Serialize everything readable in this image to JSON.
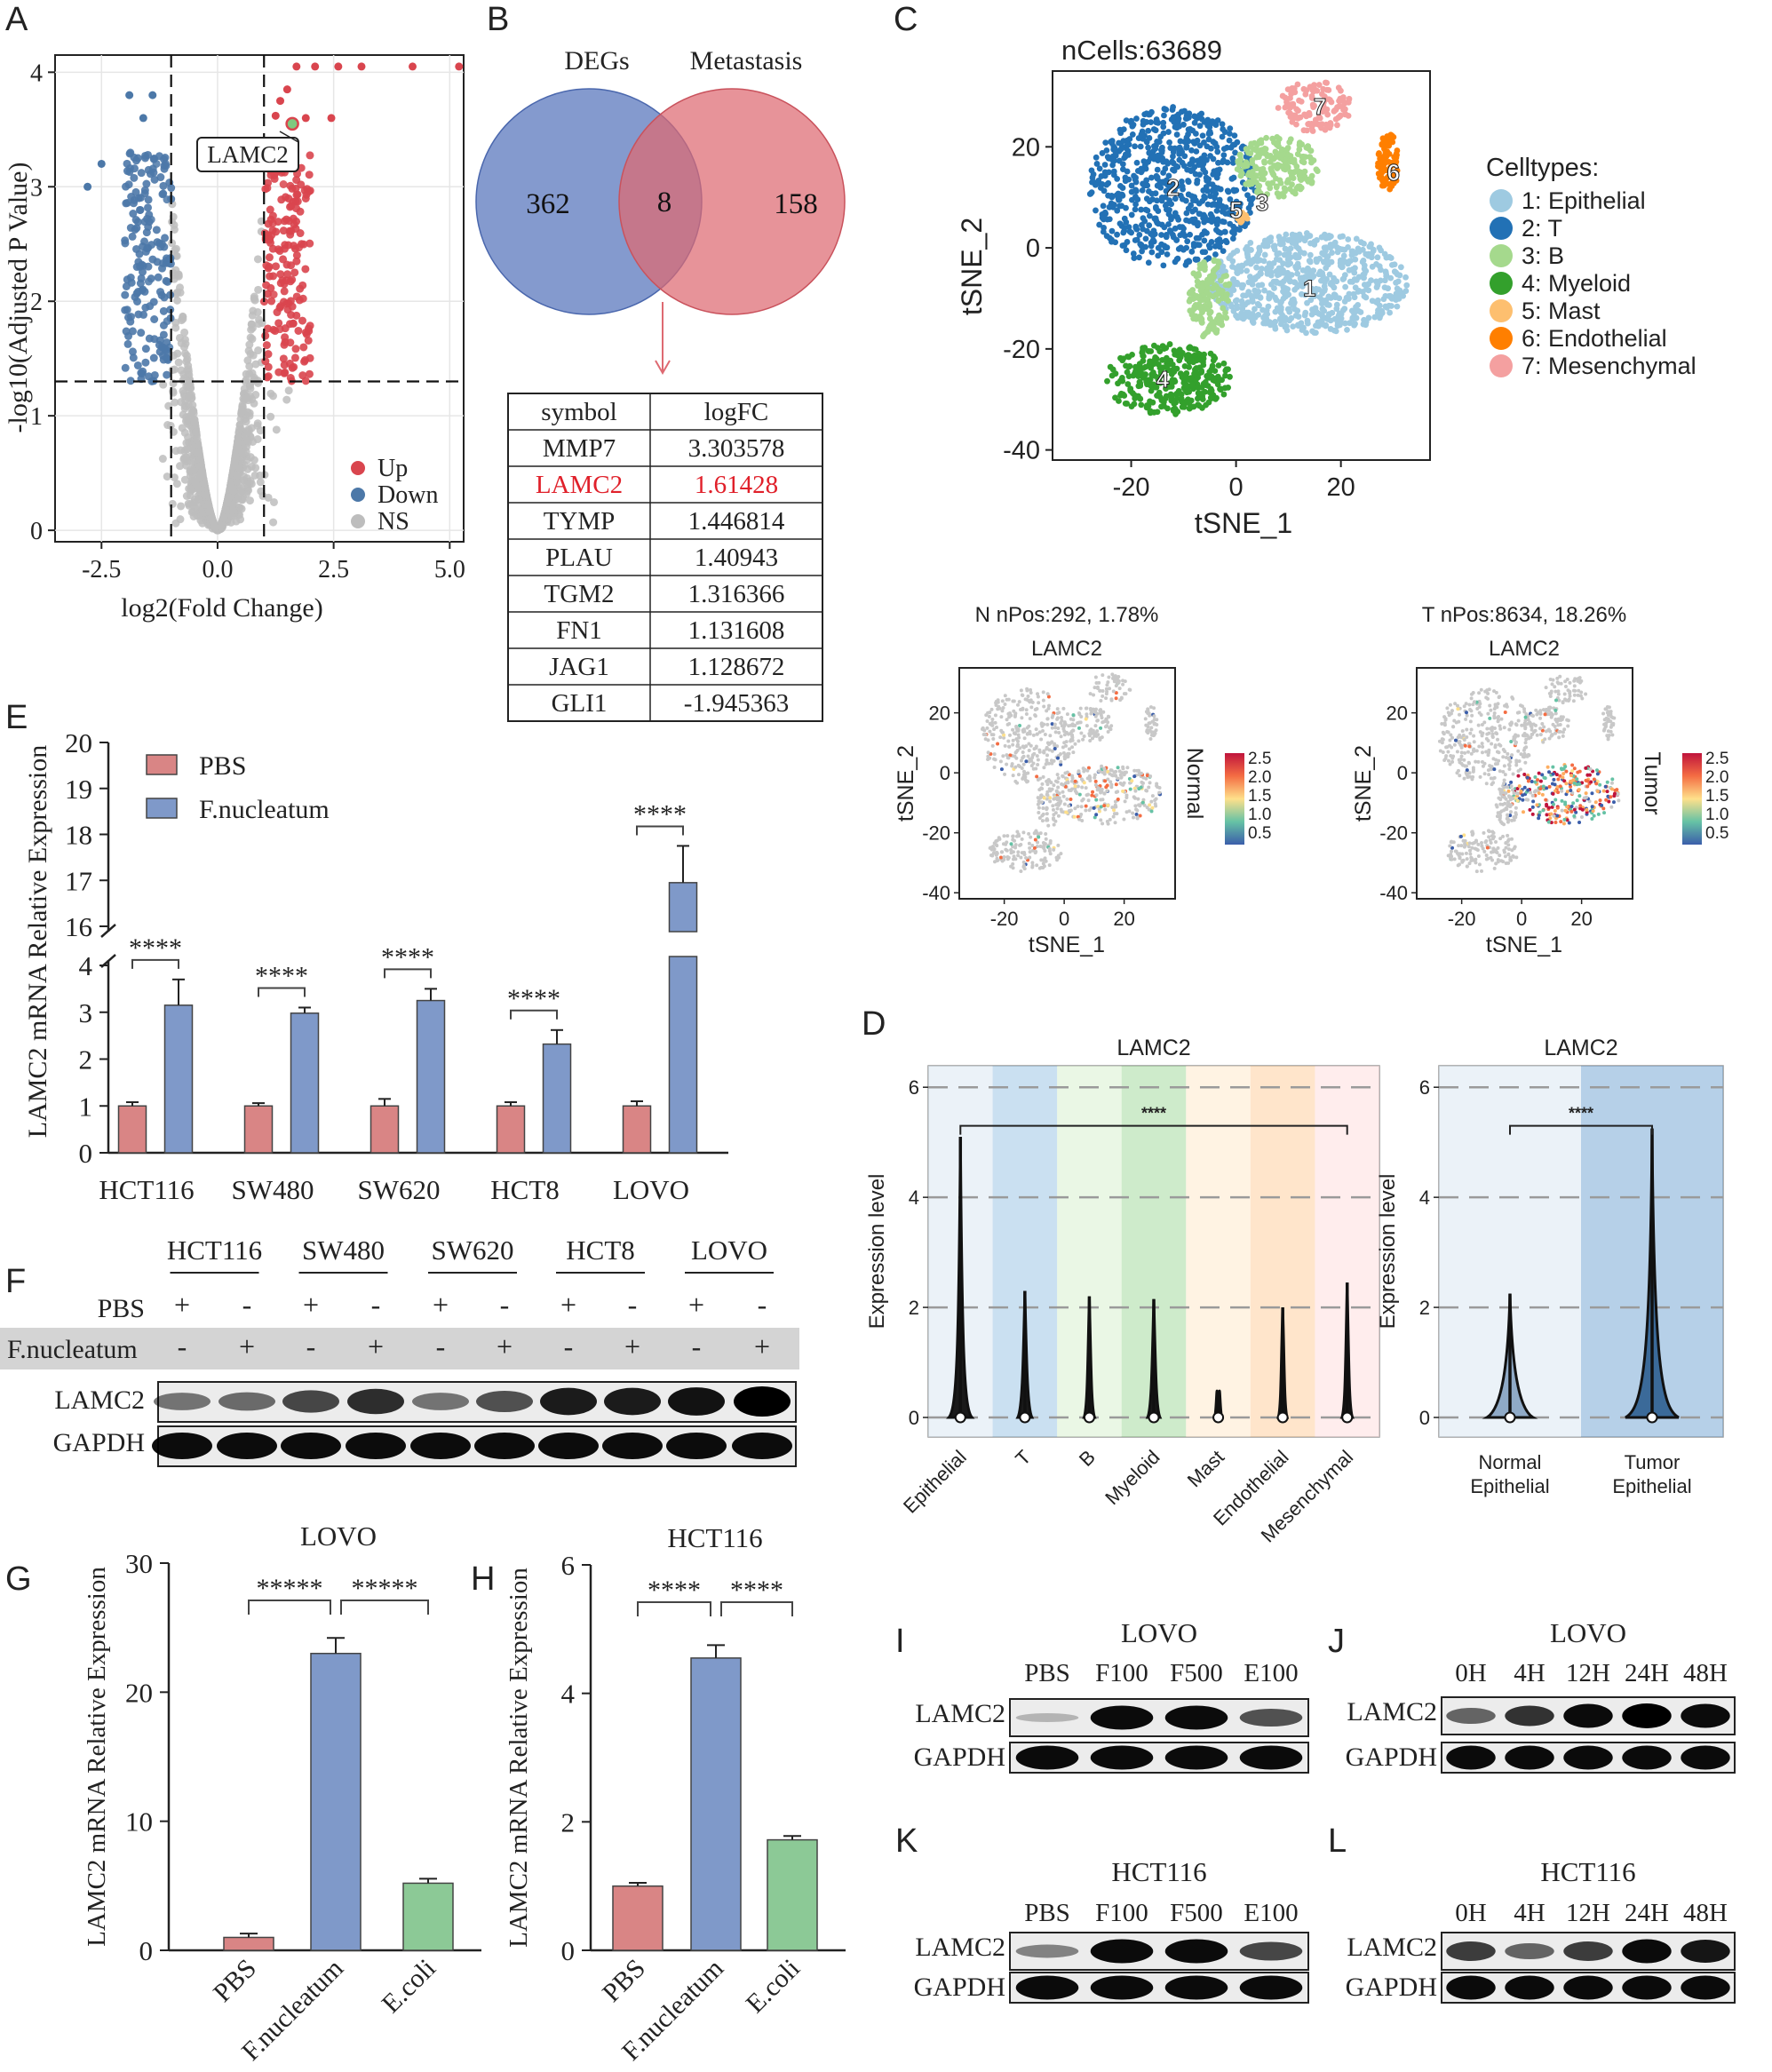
{
  "colors": {
    "up": "#d9454e",
    "down": "#4c78a8",
    "ns": "#bdbdbd",
    "pbs": "#d98585",
    "fnuc": "#7f99c9",
    "ecoli": "#8cc996",
    "venn_left": "#5b78be",
    "venn_right": "#de6a72",
    "ct1": "#9ecae1",
    "ct2": "#2271b5",
    "ct3": "#a5d98d",
    "ct4": "#33a02c",
    "ct5": "#fdbf6f",
    "ct6": "#ff7f00",
    "ct7": "#f4a0a0"
  },
  "panel_letters": [
    "A",
    "B",
    "C",
    "D",
    "E",
    "F",
    "G",
    "H",
    "I",
    "J",
    "K",
    "L"
  ],
  "panelA": {
    "chart_data": {
      "type": "scatter",
      "title": "",
      "xlabel": "log2(Fold Change)",
      "ylabel": "-log10(Adjusted P Value)",
      "xlim": [
        -3.5,
        5.3
      ],
      "ylim": [
        -0.1,
        4.15
      ],
      "xticks": [
        "-2.5",
        "0.0",
        "2.5",
        "5.0"
      ],
      "yticks": [
        "0",
        "1",
        "2",
        "3",
        "4"
      ],
      "thresholds": {
        "logfc": [
          -1,
          1
        ],
        "p": 1.3
      },
      "highlight": {
        "label": "LAMC2",
        "x": 1.61,
        "y": 3.55
      },
      "legend": [
        {
          "name": "Up",
          "color": "#d9454e"
        },
        {
          "name": "Down",
          "color": "#4c78a8"
        },
        {
          "name": "NS",
          "color": "#bdbdbd"
        }
      ]
    }
  },
  "panelB": {
    "venn": {
      "left_label": "DEGs",
      "right_label": "Metastasis",
      "left_only": "362",
      "overlap": "8",
      "right_only": "158"
    },
    "table": {
      "header": [
        "symbol",
        "logFC"
      ],
      "rows": [
        {
          "symbol": "MMP7",
          "logfc": "3.303578"
        },
        {
          "symbol": "LAMC2",
          "logfc": "1.61428"
        },
        {
          "symbol": "TYMP",
          "logfc": "1.446814"
        },
        {
          "symbol": "PLAU",
          "logfc": "1.40943"
        },
        {
          "symbol": "TGM2",
          "logfc": "1.316366"
        },
        {
          "symbol": "FN1",
          "logfc": "1.131608"
        },
        {
          "symbol": "JAG1",
          "logfc": "1.128672"
        },
        {
          "symbol": "GLI1",
          "logfc": "-1.945363"
        }
      ]
    }
  },
  "panelC": {
    "main": {
      "title": "nCells:63689",
      "xlabel": "tSNE_1",
      "ylabel": "tSNE_2",
      "xticks": [
        "-20",
        "0",
        "20"
      ],
      "yticks": [
        "20",
        "0",
        "-20",
        "-40"
      ],
      "legend_title": "Celltypes:",
      "celltypes": [
        "1: Epithelial",
        "2: T",
        "3: B",
        "4: Myeloid",
        "5: Mast",
        "6: Endothelial",
        "7: Mesenchymal"
      ],
      "cluster_labels": [
        "1",
        "2",
        "3",
        "4",
        "5",
        "6",
        "7"
      ]
    },
    "normal": {
      "header": "N nPos:292, 1.78%",
      "gene": "LAMC2",
      "side": "Normal"
    },
    "tumor": {
      "header": "T nPos:8634, 18.26%",
      "gene": "LAMC2",
      "side": "Tumor"
    },
    "small_axes": {
      "xlabel": "tSNE_1",
      "ylabel": "tSNE_2",
      "xticks": [
        "-20",
        "0",
        "20"
      ],
      "yticks": [
        "20",
        "0",
        "-20",
        "-40"
      ]
    },
    "colorbar_ticks": [
      "2.5",
      "2.0",
      "1.5",
      "1.0",
      "0.5"
    ]
  },
  "panelD": {
    "left": {
      "title": "LAMC2",
      "ylabel": "Expression level",
      "categories": [
        "Epithelial",
        "T",
        "B",
        "Myeloid",
        "Mast",
        "Endothelial",
        "Mesenchymal"
      ],
      "yticks": [
        "0",
        "2",
        "4",
        "6"
      ],
      "sig": "****"
    },
    "right": {
      "title": "LAMC2",
      "ylabel": "Expression level",
      "categories": [
        "Normal\nEpithelial",
        "Tumor\nEpithelial"
      ],
      "cat_lines": [
        [
          "Normal",
          "Epithelial"
        ],
        [
          "Tumor",
          "Epithelial"
        ]
      ],
      "yticks": [
        "0",
        "2",
        "4",
        "6"
      ],
      "sig": "****"
    }
  },
  "panelE": {
    "chart_data": {
      "type": "bar",
      "ylabel": "LAMC2 mRNA Relative Expression",
      "categories": [
        "HCT116",
        "SW480",
        "SW620",
        "HCT8",
        "LOVO"
      ],
      "series": [
        {
          "name": "PBS",
          "values": [
            1.0,
            1.0,
            1.0,
            1.0,
            1.0
          ],
          "errors": [
            0.08,
            0.06,
            0.15,
            0.08,
            0.1
          ]
        },
        {
          "name": "F.nucleatum",
          "values": [
            3.15,
            2.98,
            3.25,
            2.32,
            16.95
          ],
          "errors": [
            0.55,
            0.12,
            0.25,
            0.3,
            0.8
          ]
        }
      ],
      "ylim_lower": [
        0,
        4
      ],
      "ylim_upper": [
        16,
        20
      ],
      "yticks_lower": [
        "0",
        "1",
        "2",
        "3",
        "4"
      ],
      "yticks_upper": [
        "16",
        "17",
        "18",
        "19",
        "20"
      ],
      "sig": [
        "****",
        "****",
        "****",
        "****",
        "****"
      ]
    }
  },
  "panelF": {
    "cell_lines": [
      "HCT116",
      "SW480",
      "SW620",
      "HCT8",
      "LOVO"
    ],
    "row_labels": {
      "pbs": "PBS",
      "fnuc": "F.nucleatum",
      "lamc2": "LAMC2",
      "gapdh": "GAPDH"
    },
    "pbs_signs": [
      "+",
      "-",
      "+",
      "-",
      "+",
      "-",
      "+",
      "-",
      "+",
      "-"
    ],
    "fnuc_signs": [
      "-",
      "+",
      "-",
      "+",
      "-",
      "+",
      "-",
      "+",
      "-",
      "+"
    ],
    "lamc2_intensity": [
      0.35,
      0.4,
      0.6,
      0.75,
      0.35,
      0.55,
      0.85,
      0.85,
      0.9,
      1.0
    ]
  },
  "panelG": {
    "chart_data": {
      "type": "bar",
      "title": "LOVO",
      "ylabel": "LAMC2 mRNA Relative Expression",
      "categories": [
        "PBS",
        "F.nucleatum",
        "E.coli"
      ],
      "values": [
        1.0,
        23.0,
        5.2
      ],
      "errors": [
        0.3,
        1.2,
        0.35
      ],
      "ylim": [
        0,
        30
      ],
      "yticks": [
        "0",
        "10",
        "20",
        "30"
      ],
      "sig": [
        "*****",
        "*****"
      ]
    }
  },
  "panelH": {
    "chart_data": {
      "type": "bar",
      "title": "HCT116",
      "ylabel": "LAMC2 mRNA Relative Expression",
      "categories": [
        "PBS",
        "F.nucleatum",
        "E.coli"
      ],
      "values": [
        1.0,
        4.55,
        1.72
      ],
      "errors": [
        0.05,
        0.2,
        0.06
      ],
      "ylim": [
        0,
        6
      ],
      "yticks": [
        "0",
        "2",
        "4",
        "6"
      ],
      "sig": [
        "****",
        "****"
      ]
    }
  },
  "panelI": {
    "title": "LOVO",
    "lanes": [
      "PBS",
      "F100",
      "F500",
      "E100"
    ],
    "rows": [
      "LAMC2",
      "GAPDH"
    ],
    "lamc2_intensity": [
      0.1,
      0.95,
      0.95,
      0.6
    ]
  },
  "panelJ": {
    "title": "LOVO",
    "lanes": [
      "0H",
      "4H",
      "12H",
      "24H",
      "48H"
    ],
    "rows": [
      "LAMC2",
      "GAPDH"
    ],
    "lamc2_intensity": [
      0.5,
      0.75,
      0.95,
      1.0,
      0.95
    ]
  },
  "panelK": {
    "title": "HCT116",
    "lanes": [
      "PBS",
      "F100",
      "F500",
      "E100"
    ],
    "rows": [
      "LAMC2",
      "GAPDH"
    ],
    "lamc2_intensity": [
      0.35,
      0.95,
      0.95,
      0.65
    ]
  },
  "panelL": {
    "title": "HCT116",
    "lanes": [
      "0H",
      "4H",
      "12H",
      "24H",
      "48H"
    ],
    "rows": [
      "LAMC2",
      "GAPDH"
    ],
    "lamc2_intensity": [
      0.7,
      0.5,
      0.7,
      0.95,
      0.9
    ]
  }
}
